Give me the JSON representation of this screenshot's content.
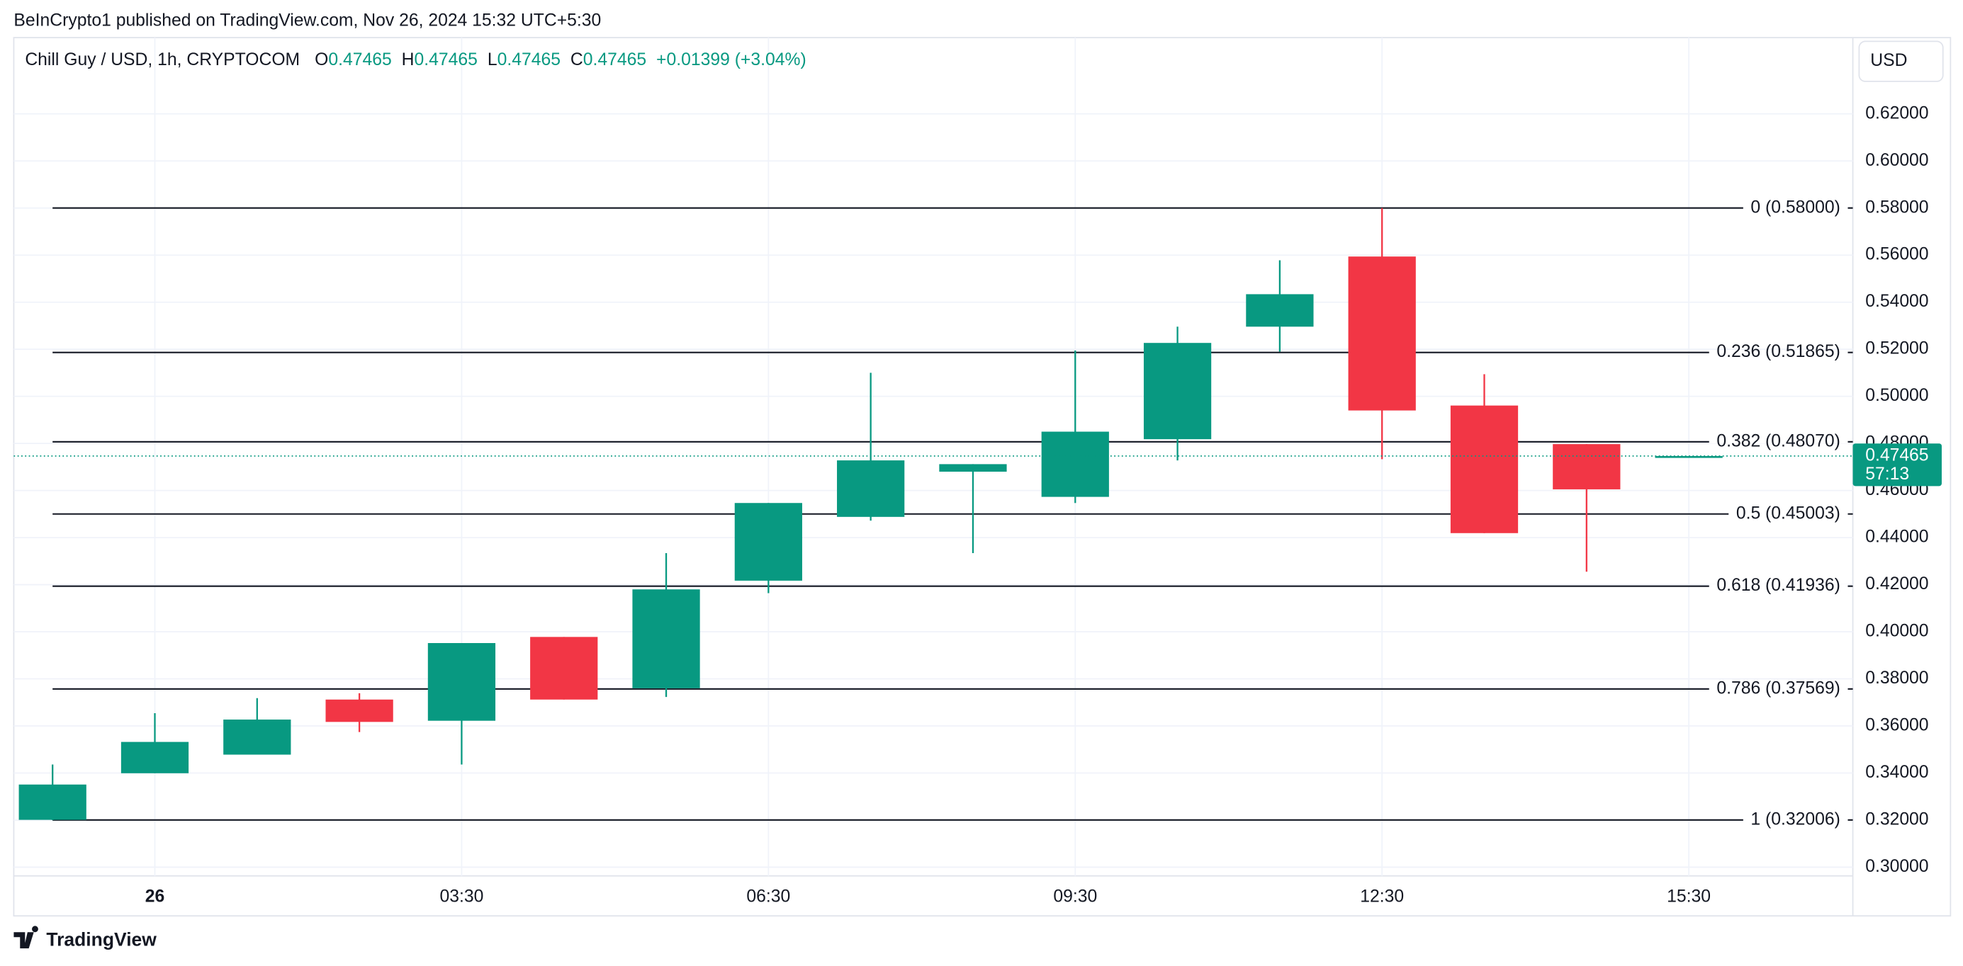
{
  "header": "BeInCrypto1 published on TradingView.com, Nov 26, 2024 15:32 UTC+5:30",
  "currency": "USD",
  "footer": "TradingView",
  "chart_data": {
    "type": "candlestick",
    "title": "Chill Guy / USD, 1h, CRYPTOCOM",
    "ohlc_legend": [
      {
        "label": "O",
        "value": "0.47465"
      },
      {
        "label": "H",
        "value": "0.47465"
      },
      {
        "label": "L",
        "value": "0.47465"
      },
      {
        "label": "C",
        "value": "0.47465"
      }
    ],
    "change": "+0.01399 (+3.04%)",
    "up_color": "#089981",
    "down_color": "#f23645",
    "categories": [
      null,
      "26",
      null,
      null,
      "03:30",
      null,
      null,
      "06:30",
      null,
      null,
      "09:30",
      null,
      null,
      "12:30",
      null,
      null,
      "15:30"
    ],
    "open": [
      0.3201,
      0.3399,
      0.3478,
      0.3712,
      0.3622,
      0.3978,
      0.376,
      0.4217,
      0.4488,
      0.468,
      0.4573,
      0.4818,
      0.5296,
      0.5594,
      0.4961,
      0.4797,
      0.47465
    ],
    "high": [
      0.3436,
      0.3654,
      0.3718,
      0.3739,
      0.3952,
      0.3978,
      0.4334,
      0.4547,
      0.51,
      0.4712,
      0.5195,
      0.5296,
      0.5578,
      0.58,
      0.5094,
      0.4797,
      0.47465
    ],
    "low": [
      0.32,
      0.3399,
      0.348,
      0.3574,
      0.3436,
      0.3712,
      0.3723,
      0.4164,
      0.4472,
      0.4334,
      0.4547,
      0.4728,
      0.519,
      0.4733,
      0.4419,
      0.4255,
      0.47465
    ],
    "close": [
      0.3351,
      0.3532,
      0.3627,
      0.3617,
      0.3952,
      0.3712,
      0.418,
      0.4547,
      0.4728,
      0.4712,
      0.485,
      0.5227,
      0.5434,
      0.494,
      0.4419,
      0.4605,
      0.47465
    ],
    "ylim": [
      0.2793,
      0.6524
    ],
    "yticks": [
      {
        "value": 0.3,
        "label": "0.30000"
      },
      {
        "value": 0.32,
        "label": "0.32000"
      },
      {
        "value": 0.34,
        "label": "0.34000"
      },
      {
        "value": 0.36,
        "label": "0.36000"
      },
      {
        "value": 0.38,
        "label": "0.38000"
      },
      {
        "value": 0.4,
        "label": "0.40000"
      },
      {
        "value": 0.42,
        "label": "0.42000"
      },
      {
        "value": 0.44,
        "label": "0.44000"
      },
      {
        "value": 0.46,
        "label": "0.46000"
      },
      {
        "value": 0.48,
        "label": "0.48000"
      },
      {
        "value": 0.5,
        "label": "0.50000"
      },
      {
        "value": 0.52,
        "label": "0.52000"
      },
      {
        "value": 0.54,
        "label": "0.54000"
      },
      {
        "value": 0.56,
        "label": "0.56000"
      },
      {
        "value": 0.58,
        "label": "0.58000"
      },
      {
        "value": 0.6,
        "label": "0.60000"
      },
      {
        "value": 0.62,
        "label": "0.62000"
      }
    ],
    "fib_levels": [
      {
        "value": 0.58,
        "label": "0 (0.58000)"
      },
      {
        "value": 0.51865,
        "label": "0.236 (0.51865)"
      },
      {
        "value": 0.4807,
        "label": "0.382 (0.48070)"
      },
      {
        "value": 0.45003,
        "label": "0.5 (0.45003)"
      },
      {
        "value": 0.41936,
        "label": "0.618 (0.41936)"
      },
      {
        "value": 0.37569,
        "label": "0.786 (0.37569)"
      },
      {
        "value": 0.32006,
        "label": "1 (0.32006)"
      }
    ],
    "last_price": {
      "value": 0.47465,
      "label": "0.47465",
      "countdown": "57:13"
    },
    "grid": true
  }
}
